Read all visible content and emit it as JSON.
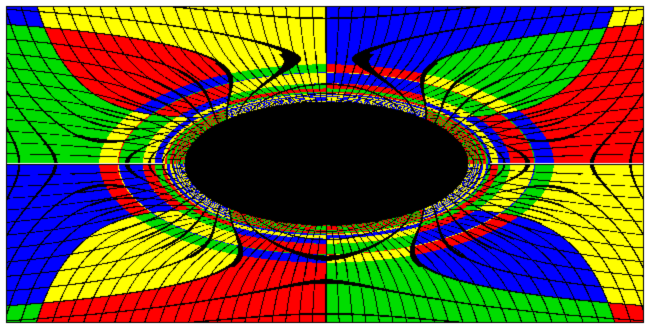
{
  "image": {
    "kind": "gravitational-lensing-render",
    "projection": "equirectangular",
    "quadrant_colors": {
      "top_left": "#ff0000",
      "top_right": "#00dd00",
      "bottom_left": "#ffff00",
      "bottom_right": "#0000ff"
    },
    "grid_color": "#000000",
    "shadow_color": "#000000",
    "background_color": "#ffffff"
  }
}
